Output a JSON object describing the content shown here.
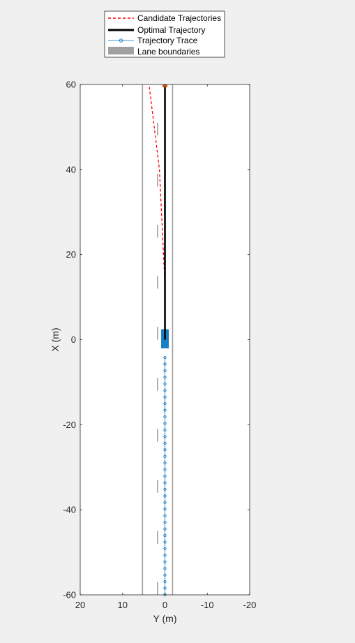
{
  "chart_data": {
    "type": "line",
    "xlabel": "Y (m)",
    "ylabel": "X (m)",
    "xlim": [
      20,
      -20
    ],
    "ylim": [
      -60,
      60
    ],
    "x_reversed": true,
    "xticks": [
      20,
      10,
      0,
      -10,
      -20
    ],
    "yticks": [
      -60,
      -40,
      -20,
      0,
      20,
      40,
      60
    ],
    "legend_position": "top-center",
    "legend": [
      {
        "label": "Candidate Trajectories",
        "style": "dashed",
        "color": "#ff0000"
      },
      {
        "label": "Optimal Trajectory",
        "style": "solid",
        "color": "#000000"
      },
      {
        "label": "Trajectory Trace",
        "style": "line-marker",
        "color": "#0072bd"
      },
      {
        "label": "Lane boundaries",
        "style": "patch",
        "color": "#a0a0a0"
      }
    ],
    "lane_boundaries": {
      "solid": [
        5.3,
        -1.8
      ],
      "dashed_lateral": 1.75,
      "dash_segments": [
        [
          -60,
          -57
        ],
        [
          -48,
          -45
        ],
        [
          -36,
          -33
        ],
        [
          -24,
          -21
        ],
        [
          -12,
          -9
        ],
        [
          0,
          3
        ],
        [
          12,
          15
        ],
        [
          24,
          27
        ],
        [
          36,
          39
        ],
        [
          48,
          51
        ]
      ]
    },
    "series": [
      {
        "name": "Candidate Trajectories",
        "points": [
          [
            0,
            13
          ],
          [
            1.3,
            40
          ],
          [
            3.7,
            59.5
          ]
        ]
      },
      {
        "name": "Optimal Trajectory",
        "points": [
          [
            0,
            0
          ],
          [
            0,
            60
          ]
        ]
      },
      {
        "name": "Trajectory Trace",
        "y": 0,
        "x_start": -60,
        "x_end": -4,
        "step": 1.55
      }
    ],
    "ego_vehicle": {
      "y_center": 0,
      "x_center": 0.2,
      "length": 4.5,
      "width": 1.8,
      "color": "#0072bd"
    },
    "target_marker": {
      "y": 0,
      "x": 60,
      "color": "#d95319"
    }
  }
}
